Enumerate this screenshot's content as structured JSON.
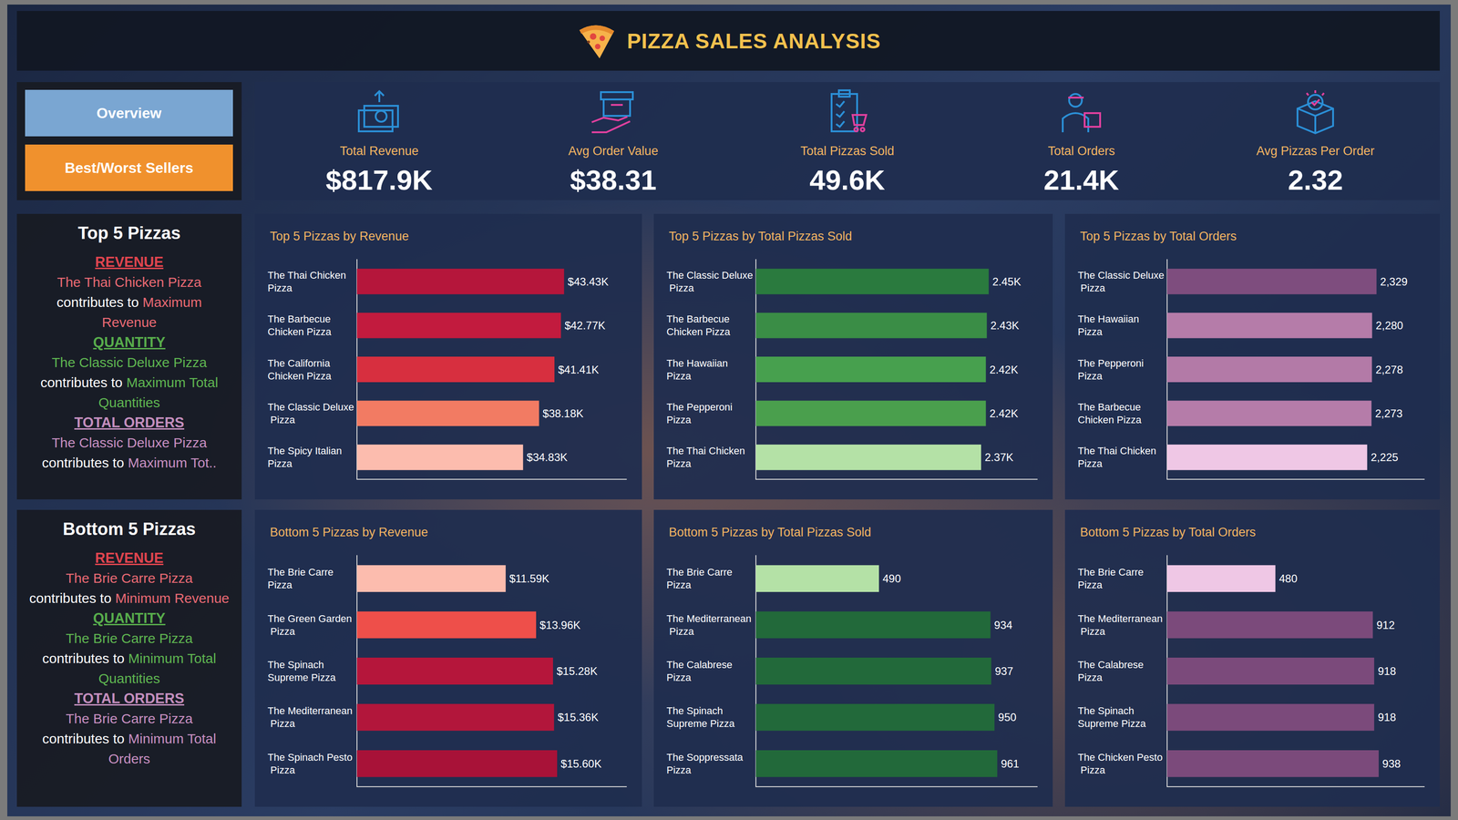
{
  "header": {
    "title": "PIZZA SALES ANALYSIS"
  },
  "navigation": {
    "buttons": [
      "Overview",
      "Best/Worst Sellers"
    ]
  },
  "kpis": [
    {
      "label": "Total Revenue",
      "value": "$817.9K"
    },
    {
      "label": "Avg Order Value",
      "value": "$38.31"
    },
    {
      "label": "Total Pizzas Sold",
      "value": "49.6K"
    },
    {
      "label": "Total Orders",
      "value": "21.4K"
    },
    {
      "label": "Avg Pizzas Per Order",
      "value": "2.32"
    }
  ],
  "summaries": [
    {
      "title": "Top 5 Pizzas",
      "items": [
        {
          "heading": "REVENUE",
          "pizza": "The Thai Chicken Pizza",
          "verb": "contributes to",
          "target": "Maximum Revenue"
        },
        {
          "heading": "QUANTITY",
          "pizza": "The Classic Deluxe Pizza",
          "verb": "contributes to",
          "target": "Maximum Total Quantities"
        },
        {
          "heading": "TOTAL ORDERS",
          "pizza": "The Classic Deluxe Pizza",
          "verb": "contributes to",
          "target": "Maximum Tot.."
        }
      ]
    },
    {
      "title": "Bottom 5 Pizzas",
      "items": [
        {
          "heading": "REVENUE",
          "pizza": "The Brie Carre Pizza",
          "verb": "contributes to",
          "target": "Minimum Revenue"
        },
        {
          "heading": "QUANTITY",
          "pizza": "The Brie Carre Pizza",
          "verb": "contributes to",
          "target": "Minimum Total Quantities"
        },
        {
          "heading": "TOTAL ORDERS",
          "pizza": "The Brie Carre Pizza",
          "verb": "contributes to",
          "target": "Minimum Total Orders"
        }
      ]
    }
  ],
  "chart_data": [
    {
      "type": "bar",
      "title": "Top 5 Pizzas by Revenue",
      "orientation": "horizontal",
      "categories": [
        "The Thai Chicken Pizza",
        "The Barbecue Chicken Pizza",
        "The California Chicken Pizza",
        "The Classic Deluxe Pizza",
        "The Spicy Italian Pizza"
      ],
      "values": [
        43430,
        42770,
        41410,
        38180,
        34830
      ],
      "value_labels": [
        "$43.43K",
        "$42.77K",
        "$41.41K",
        "$38.18K",
        "$34.83K"
      ],
      "colors": [
        "#b5163b",
        "#c21b3e",
        "#d72f3f",
        "#f27b63",
        "#fcbcae"
      ],
      "xlim": [
        0,
        56500
      ],
      "data_labels": true,
      "tick_labels": "y",
      "grid": false
    },
    {
      "type": "bar",
      "title": "Top 5 Pizzas by Total Pizzas Sold",
      "orientation": "horizontal",
      "categories": [
        "The Classic Deluxe Pizza",
        "The Barbecue Chicken Pizza",
        "The Hawaiian Pizza",
        "The Pepperoni Pizza",
        "The Thai Chicken Pizza"
      ],
      "values": [
        2450,
        2430,
        2420,
        2420,
        2370
      ],
      "value_labels": [
        "2.45K",
        "2.43K",
        "2.42K",
        "2.42K",
        "2.37K"
      ],
      "colors": [
        "#2a7a3e",
        "#3a8d46",
        "#47a04e",
        "#4a9f4d",
        "#b4e1a6"
      ],
      "xlim": [
        0,
        2960
      ],
      "data_labels": true,
      "tick_labels": "y",
      "grid": false
    },
    {
      "type": "bar",
      "title": "Top 5 Pizzas by Total Orders",
      "orientation": "horizontal",
      "categories": [
        "The Classic Deluxe Pizza",
        "The Hawaiian Pizza",
        "The Pepperoni Pizza",
        "The Barbecue Chicken Pizza",
        "The Thai Chicken Pizza"
      ],
      "values": [
        2329,
        2280,
        2278,
        2273,
        2225
      ],
      "value_labels": [
        "2,329",
        "2,280",
        "2,278",
        "2,273",
        "2,225"
      ],
      "colors": [
        "#7e4d7e",
        "#b57ca9",
        "#b37aa7",
        "#b57ca9",
        "#efc7e5"
      ],
      "xlim": [
        0,
        2860
      ],
      "data_labels": true,
      "tick_labels": "y",
      "grid": false
    },
    {
      "type": "bar",
      "title": "Bottom 5 Pizzas by Revenue",
      "orientation": "horizontal",
      "categories": [
        "The Brie Carre Pizza",
        "The Green Garden Pizza",
        "The Spinach Supreme Pizza",
        "The Mediterranean Pizza",
        "The Spinach Pesto Pizza"
      ],
      "values": [
        11590,
        13960,
        15280,
        15360,
        15600
      ],
      "value_labels": [
        "$11.59K",
        "$13.96K",
        "$15.28K",
        "$15.36K",
        "$15.60K"
      ],
      "colors": [
        "#fcbcae",
        "#ee4f4a",
        "#b5163b",
        "#b2163b",
        "#a81238"
      ],
      "xlim": [
        0,
        21000
      ],
      "data_labels": true,
      "tick_labels": "y",
      "grid": false
    },
    {
      "type": "bar",
      "title": "Bottom 5 Pizzas by Total Pizzas Sold",
      "orientation": "horizontal",
      "categories": [
        "The Brie Carre Pizza",
        "The Mediterranean Pizza",
        "The Calabrese Pizza",
        "The Spinach Supreme Pizza",
        "The Soppressata Pizza"
      ],
      "values": [
        490,
        934,
        937,
        950,
        961
      ],
      "colors": [
        "#b4e1a6",
        "#22693a",
        "#22693a",
        "#22693a",
        "#22693a"
      ],
      "xlim": [
        0,
        1120
      ],
      "data_labels": true,
      "tick_labels": "y",
      "grid": false
    },
    {
      "type": "bar",
      "title": "Bottom 5 Pizzas by Total Orders",
      "orientation": "horizontal",
      "categories": [
        "The Brie Carre Pizza",
        "The Mediterranean Pizza",
        "The Calabrese Pizza",
        "The Spinach Supreme Pizza",
        "The Chicken Pesto Pizza"
      ],
      "values": [
        480,
        912,
        918,
        918,
        938
      ],
      "colors": [
        "#efc7e5",
        "#7b4a7b",
        "#7b4a7b",
        "#7b4a7b",
        "#7b4a7b"
      ],
      "xlim": [
        0,
        1140
      ],
      "data_labels": true,
      "tick_labels": "y",
      "grid": false
    }
  ]
}
